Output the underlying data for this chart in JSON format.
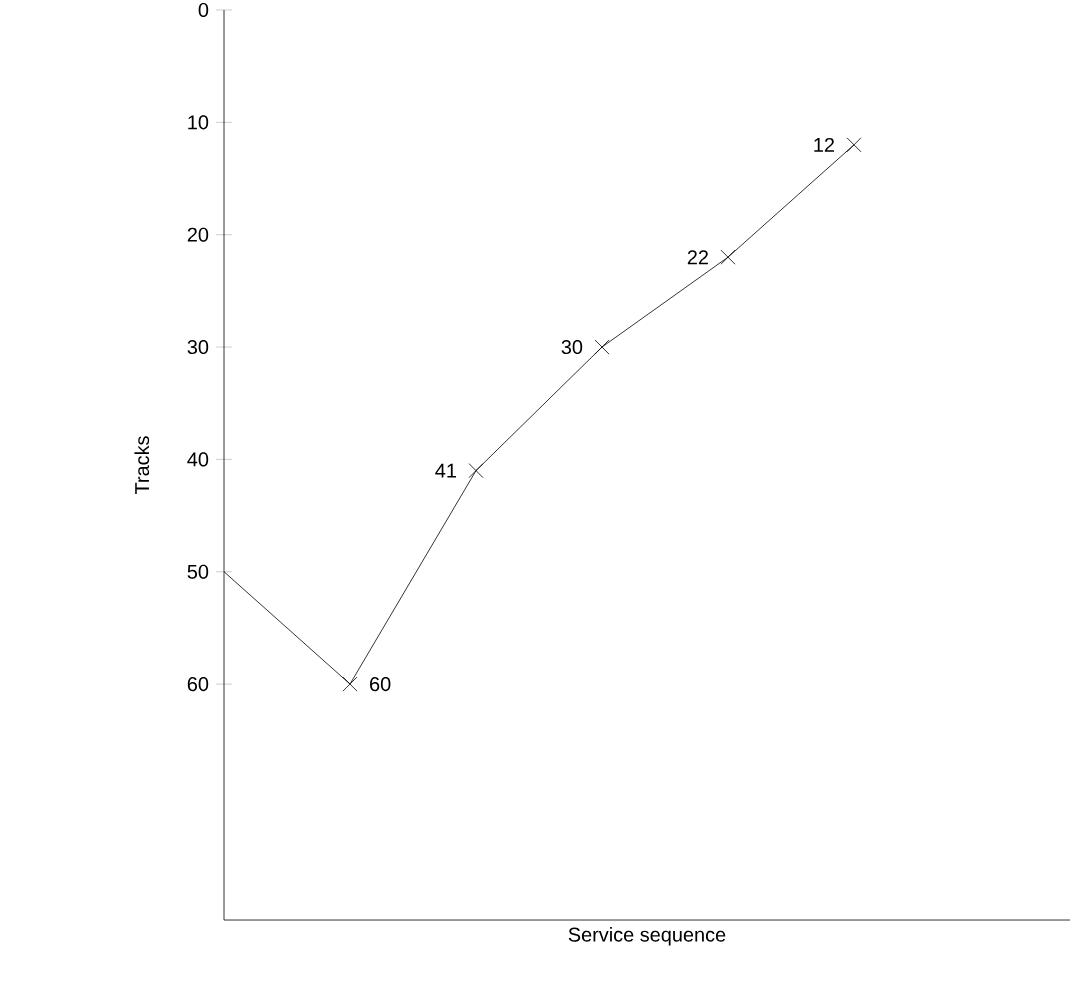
{
  "chart_data": {
    "type": "line",
    "xlabel": "Service sequence",
    "ylabel": "Tracks",
    "categories": [
      null,
      null,
      null,
      null,
      null,
      null
    ],
    "values": [
      50,
      60,
      41,
      30,
      22,
      12
    ],
    "value_labels": [
      null,
      "60",
      "41",
      "30",
      "22",
      "12"
    ],
    "ylim": [
      81,
      0
    ],
    "yticks": [
      0,
      10,
      20,
      30,
      40,
      50,
      60
    ],
    "marker": "cross",
    "color": "#000000",
    "tick_labels": "y"
  }
}
